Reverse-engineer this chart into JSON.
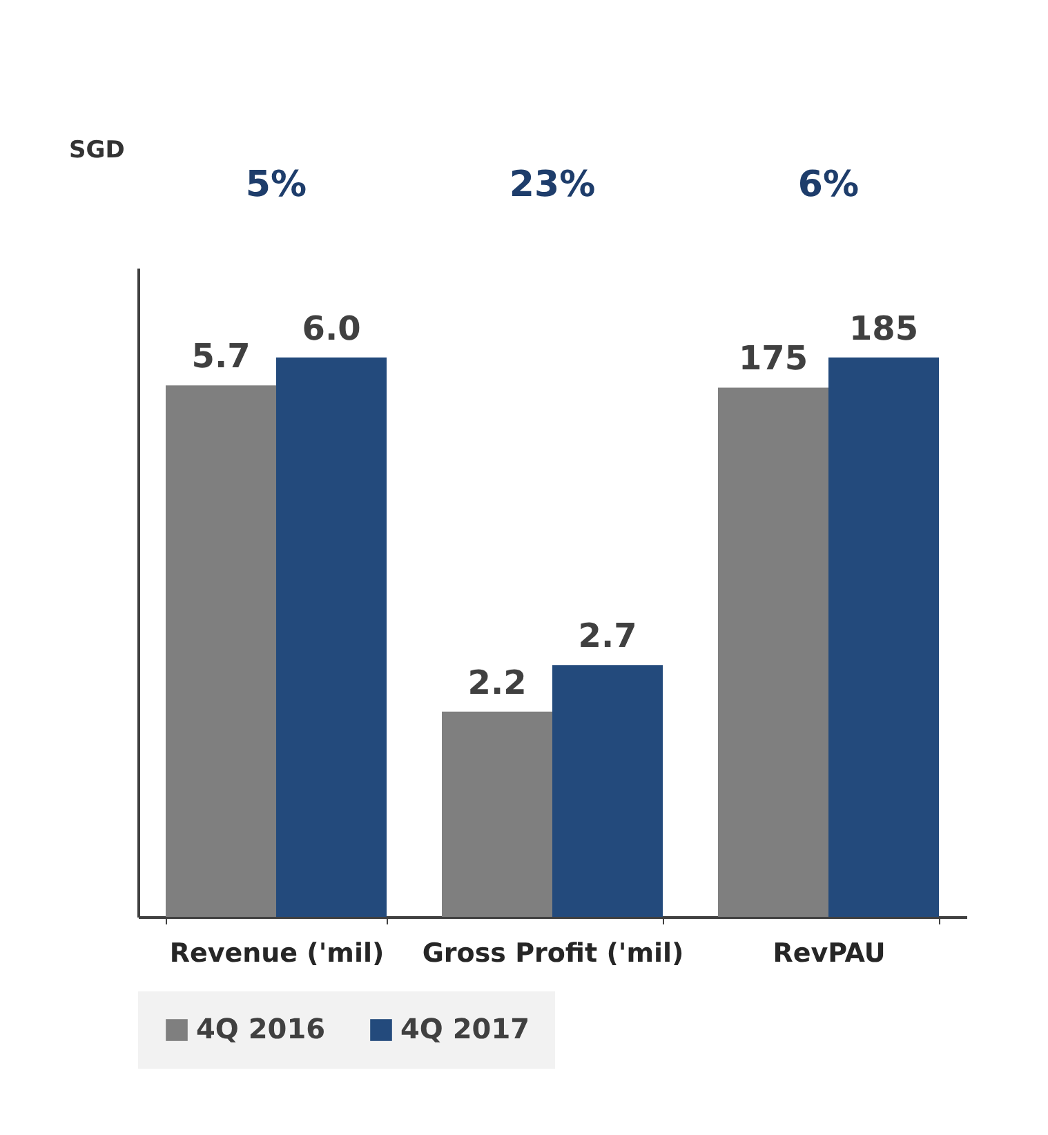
{
  "chart_data": {
    "type": "bar",
    "categories": [
      "Revenue ('mil)",
      "Gross Profit ('mil)",
      "RevPAU"
    ],
    "series": [
      {
        "name": "4Q 2016",
        "color": "#7f7f7f",
        "values": [
          5.7,
          2.2,
          null
        ],
        "value_labels": [
          "5.7",
          "2.2",
          null
        ]
      },
      {
        "name": "4Q 2017",
        "color": "#234a7c",
        "values": [
          6.0,
          2.7,
          null
        ],
        "value_labels": [
          "6.0",
          "2.7",
          null
        ]
      },
      {
        "color": "#7f7f7f",
        "axis": "y2",
        "values": [
          null,
          null,
          175
        ],
        "value_labels": [
          null,
          null,
          "175"
        ]
      },
      {
        "color": "#234a7c",
        "axis": "y2",
        "values": [
          null,
          null,
          185
        ],
        "value_labels": [
          null,
          null,
          "185"
        ]
      }
    ],
    "tick_labels": "x",
    "legend": "bottom",
    "annotations": [
      "SGD",
      "5%",
      "23%",
      "6%"
    ]
  }
}
